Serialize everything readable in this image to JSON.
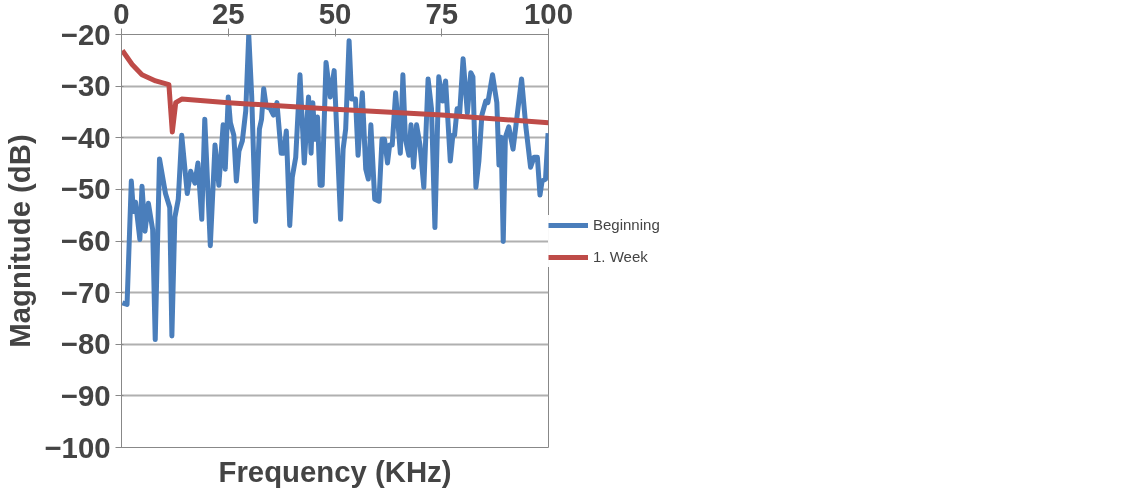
{
  "chart_data": {
    "type": "line",
    "xlabel": "Frequency (KHz)",
    "ylabel": "Magnitude (dB)",
    "xlim": [
      0,
      100
    ],
    "xticks": [
      0,
      25,
      50,
      75,
      100
    ],
    "ylim": [
      -100,
      -20
    ],
    "yticks": [
      -20,
      -30,
      -40,
      -50,
      -60,
      -70,
      -80,
      -90,
      -100
    ],
    "grid": "y",
    "legend": "right",
    "marker": "none",
    "line_style": "solid",
    "series": [
      {
        "name": "Beginning",
        "color": "#4a7ebb",
        "x": [
          0.2,
          1.3,
          2.3,
          2.8,
          3.3,
          4.3,
          4.8,
          5.5,
          6.3,
          7.3,
          7.9,
          8.9,
          10.3,
          11.3,
          11.8,
          12.5,
          13.3,
          14.1,
          15.4,
          16.2,
          17.2,
          17.9,
          18.8,
          19.5,
          20.8,
          21.9,
          22.8,
          23.8,
          24.3,
          25.0,
          25.5,
          26.3,
          26.9,
          27.5,
          28.3,
          29.1,
          29.8,
          30.5,
          31.4,
          32.3,
          32.8,
          33.3,
          33.9,
          34.8,
          35.6,
          36.4,
          37.4,
          38.0,
          38.6,
          39.4,
          40.0,
          40.8,
          41.8,
          42.8,
          43.8,
          44.4,
          44.8,
          45.3,
          45.9,
          46.5,
          47.0,
          47.9,
          48.9,
          49.8,
          51.3,
          51.9,
          52.5,
          53.3,
          53.9,
          54.8,
          55.4,
          56.4,
          57.2,
          57.8,
          58.4,
          59.3,
          60.3,
          61.0,
          61.6,
          62.3,
          62.8,
          63.4,
          64.2,
          65.3,
          65.9,
          66.5,
          67.3,
          67.8,
          68.4,
          69.1,
          69.9,
          70.8,
          71.8,
          72.6,
          73.4,
          74.3,
          75.2,
          75.9,
          77.0,
          77.6,
          78.0,
          78.6,
          79.2,
          80.0,
          81.0,
          81.8,
          82.3,
          83.0,
          83.7,
          84.4,
          85.3,
          85.8,
          86.9,
          87.9,
          88.4,
          88.9,
          89.4,
          89.9,
          90.7,
          91.7,
          93.7,
          94.7,
          95.8,
          96.6,
          97.4,
          98.0,
          98.5,
          99.3,
          99.9
        ],
        "values": [
          -72,
          -72.3,
          -48.4,
          -54.3,
          -52.5,
          -59.7,
          -49.4,
          -58.1,
          -52.7,
          -57.8,
          -79.1,
          -44.1,
          -50.8,
          -53.5,
          -78.4,
          -55.4,
          -51.9,
          -39.5,
          -50.8,
          -46.5,
          -48.8,
          -44.9,
          -55.8,
          -36.4,
          -60.9,
          -41.4,
          -49.2,
          -37.5,
          -46.1,
          -32.1,
          -37.1,
          -39.5,
          -48.4,
          -42.6,
          -40.6,
          -34.8,
          -20,
          -32.1,
          -56.2,
          -38.3,
          -36.4,
          -30.5,
          -34,
          -34.3,
          -35.6,
          -33.2,
          -43,
          -43,
          -38.7,
          -57,
          -47.6,
          -43.8,
          -27.8,
          -44.9,
          -32.1,
          -43,
          -33.2,
          -40.3,
          -36,
          -49.2,
          -49.2,
          -25.4,
          -32.1,
          -27,
          -55.8,
          -42.2,
          -38.3,
          -21.2,
          -32.5,
          -32.5,
          -43.4,
          -31.3,
          -46.1,
          -48,
          -37.5,
          -51.9,
          -52.3,
          -40.3,
          -40.3,
          -44.9,
          -41.4,
          -41.4,
          -31.3,
          -43,
          -27.8,
          -40.3,
          -43.4,
          -37.5,
          -45.7,
          -37.5,
          -41.4,
          -49.6,
          -28.6,
          -34.4,
          -57.4,
          -28.2,
          -32.9,
          -29,
          -44.5,
          -39.5,
          -39.5,
          -34.4,
          -35.2,
          -24.7,
          -35.2,
          -27.4,
          -28.2,
          -49.6,
          -44.5,
          -35.6,
          -32.9,
          -33.2,
          -27.8,
          -33.2,
          -45.3,
          -39.9,
          -60.1,
          -39.9,
          -37.9,
          -42.2,
          -28.6,
          -37.9,
          -45.7,
          -43.8,
          -43.8,
          -51.1,
          -48.4,
          -48,
          -39.1
        ]
      },
      {
        "name": "1. Week",
        "color": "#be4b48",
        "x": [
          0.2,
          2.5,
          4.8,
          8,
          11.1,
          11.9,
          12.7,
          14.1,
          25,
          50,
          75,
          100
        ],
        "values": [
          -23.1,
          -25.8,
          -27.8,
          -29,
          -29.7,
          -38.9,
          -33.2,
          -32.5,
          -33.2,
          -34.5,
          -35.6,
          -37.1
        ]
      }
    ]
  }
}
